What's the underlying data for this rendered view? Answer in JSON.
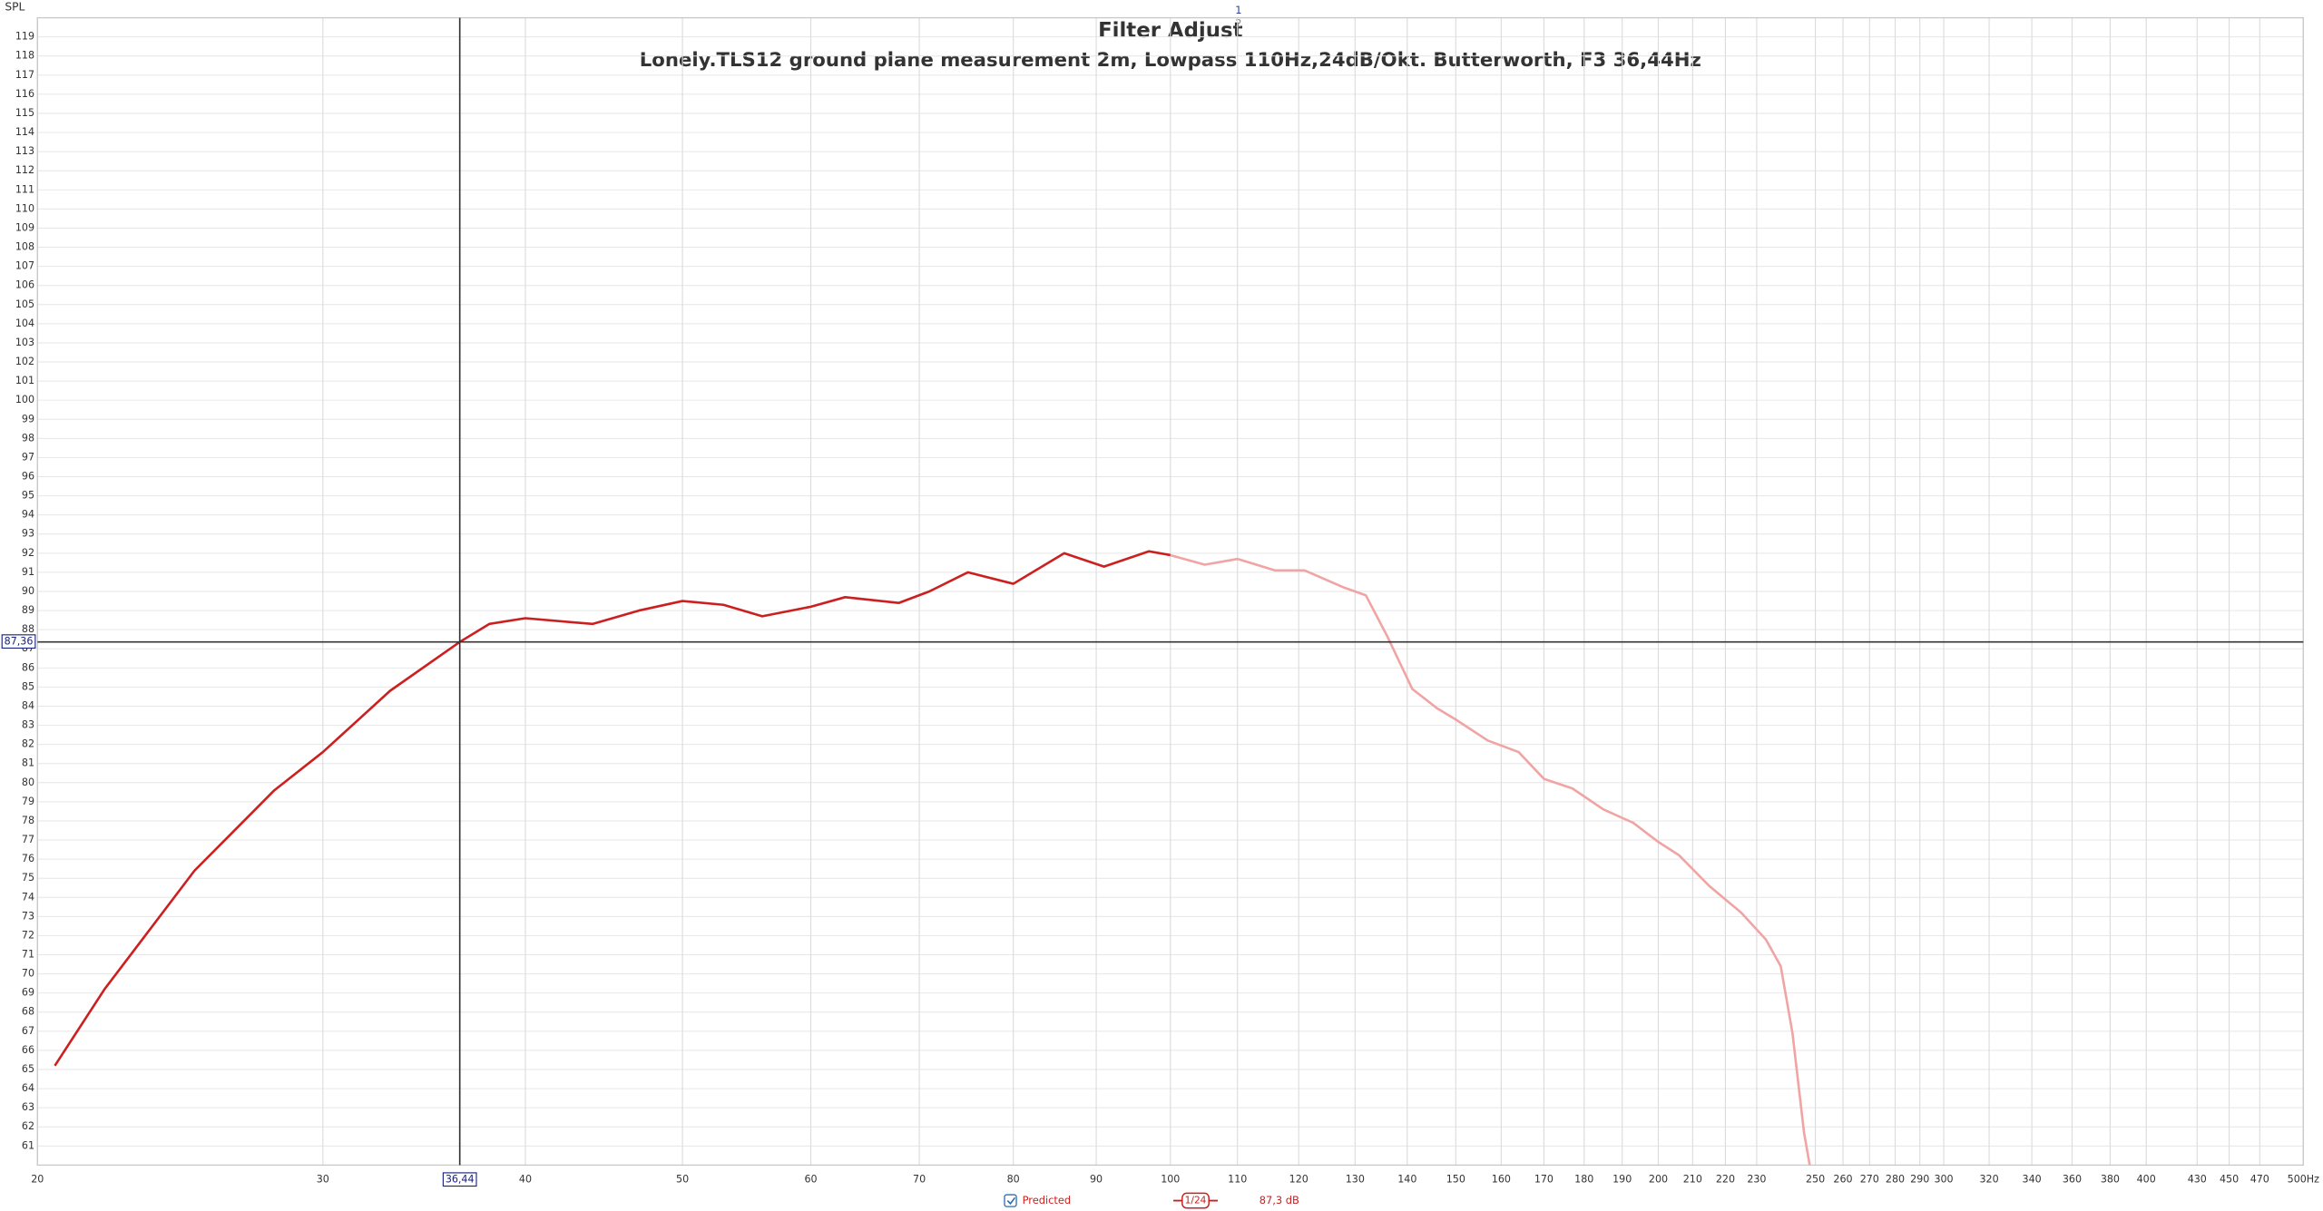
{
  "chart_data": {
    "type": "line",
    "title": "Filter Adjust",
    "title_marks": [
      "1",
      "2"
    ],
    "subtitle": "Lonely.TLS12 ground plane measurement 2m, Lowpass 110Hz,24dB/Okt. Butterworth, F3 36,44Hz",
    "y_label": "SPL",
    "log_x": true,
    "grid": true,
    "xlim": [
      20,
      500
    ],
    "ylim": [
      60,
      120
    ],
    "xticks": [
      20,
      30,
      40,
      50,
      60,
      70,
      80,
      90,
      100,
      110,
      120,
      130,
      140,
      150,
      160,
      170,
      180,
      190,
      200,
      210,
      220,
      230,
      250,
      260,
      270,
      280,
      290,
      300,
      320,
      340,
      360,
      380,
      400,
      430,
      450,
      470,
      {
        "value": 500,
        "label": "500Hz"
      }
    ],
    "yticks": [
      61,
      62,
      63,
      64,
      65,
      66,
      67,
      68,
      69,
      70,
      71,
      72,
      73,
      74,
      75,
      76,
      77,
      78,
      79,
      80,
      81,
      82,
      83,
      84,
      85,
      86,
      87,
      88,
      89,
      90,
      91,
      92,
      93,
      94,
      95,
      96,
      97,
      98,
      99,
      100,
      101,
      102,
      103,
      104,
      105,
      106,
      107,
      108,
      109,
      110,
      111,
      112,
      113,
      114,
      115,
      116,
      117,
      118,
      119
    ],
    "cursor": {
      "x": {
        "value": 36.44,
        "label": "36,44"
      },
      "y": {
        "value": 87.36,
        "label": "87,36"
      }
    },
    "series": [
      {
        "name": "Predicted",
        "color": "#cc2020",
        "x": [
          20.5,
          22,
          25,
          28,
          30,
          33,
          36.44,
          38,
          40,
          44,
          47,
          50,
          53,
          56,
          60,
          63,
          68,
          71,
          75,
          80,
          86,
          91,
          97,
          100
        ],
        "values": [
          65.2,
          69.2,
          75.4,
          79.6,
          81.6,
          84.8,
          87.36,
          88.3,
          88.6,
          88.3,
          89.0,
          89.5,
          89.3,
          88.7,
          89.2,
          89.7,
          89.4,
          90.0,
          91.0,
          90.4,
          92.0,
          91.3,
          92.1,
          91.9
        ]
      },
      {
        "color": "#f0a4a4",
        "x": [
          100,
          105,
          110,
          116,
          121,
          128,
          132,
          136,
          141,
          146,
          150,
          157,
          164,
          170,
          177,
          185,
          193,
          200,
          206,
          215,
          225,
          233,
          238,
          242,
          246,
          248
        ],
        "values": [
          91.9,
          91.4,
          91.7,
          91.1,
          91.1,
          90.2,
          89.8,
          87.7,
          84.9,
          83.9,
          83.3,
          82.2,
          81.6,
          80.2,
          79.7,
          78.6,
          77.9,
          76.9,
          76.2,
          74.6,
          73.2,
          71.8,
          70.4,
          66.9,
          61.7,
          60.0
        ]
      }
    ],
    "legend": {
      "smoothing": "1/24",
      "level": "87,3 dB"
    }
  }
}
